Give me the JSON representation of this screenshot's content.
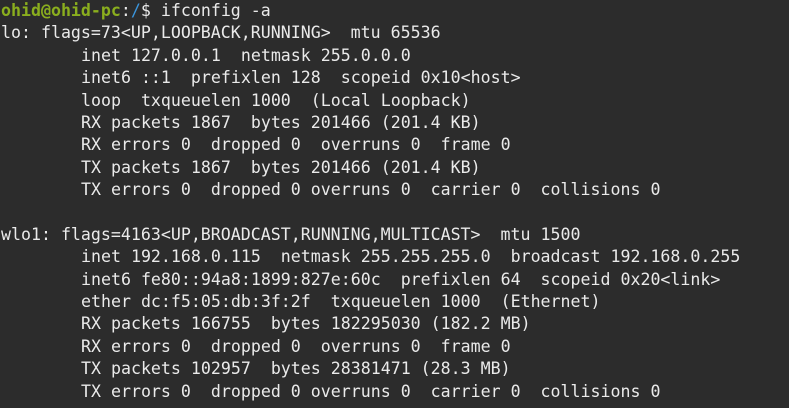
{
  "prompt": {
    "user_host": "ohid@ohid-pc",
    "sep": ":",
    "path": "/",
    "symbol": "$ ",
    "command": "ifconfig -a"
  },
  "colors": {
    "background": "#2c2c2c",
    "text": "#eaeaea",
    "user_host": "#8aae1e",
    "path": "#3b95dc"
  },
  "interfaces": [
    {
      "header": "lo: flags=73<UP,LOOPBACK,RUNNING>  mtu 65536",
      "lines": [
        "inet 127.0.0.1  netmask 255.0.0.0",
        "inet6 ::1  prefixlen 128  scopeid 0x10<host>",
        "loop  txqueuelen 1000  (Local Loopback)",
        "RX packets 1867  bytes 201466 (201.4 KB)",
        "RX errors 0  dropped 0  overruns 0  frame 0",
        "TX packets 1867  bytes 201466 (201.4 KB)",
        "TX errors 0  dropped 0 overruns 0  carrier 0  collisions 0"
      ]
    },
    {
      "header": "wlo1: flags=4163<UP,BROADCAST,RUNNING,MULTICAST>  mtu 1500",
      "lines": [
        "inet 192.168.0.115  netmask 255.255.255.0  broadcast 192.168.0.255",
        "inet6 fe80::94a8:1899:827e:60c  prefixlen 64  scopeid 0x20<link>",
        "ether dc:f5:05:db:3f:2f  txqueuelen 1000  (Ethernet)",
        "RX packets 166755  bytes 182295030 (182.2 MB)",
        "RX errors 0  dropped 0  overruns 0  frame 0",
        "TX packets 102957  bytes 28381471 (28.3 MB)",
        "TX errors 0  dropped 0 overruns 0  carrier 0  collisions 0"
      ]
    }
  ]
}
